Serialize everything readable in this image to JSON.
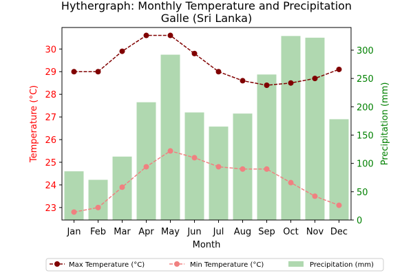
{
  "chart_data": {
    "type": "bar",
    "title_line1": "Hythergraph: Monthly Temperature and Precipitation",
    "title_line2": "Galle (Sri Lanka)",
    "xlabel": "Month",
    "ylabel_left": "Temperature (°C)",
    "ylabel_right": "Precipitation (mm)",
    "categories": [
      "Jan",
      "Feb",
      "Mar",
      "Apr",
      "May",
      "Jun",
      "Jul",
      "Aug",
      "Sep",
      "Oct",
      "Nov",
      "Dec"
    ],
    "left_axis": {
      "ylim": [
        22.45,
        30.95
      ],
      "ticks": [
        23,
        24,
        25,
        26,
        27,
        28,
        29,
        30
      ],
      "color": "#ff0000"
    },
    "right_axis": {
      "ylim": [
        0,
        340
      ],
      "ticks": [
        0,
        50,
        100,
        150,
        200,
        250,
        300
      ],
      "color": "#008000"
    },
    "series": [
      {
        "name": "Max Temperature (°C)",
        "type": "line",
        "axis": "left",
        "color": "#800000",
        "values": [
          29.0,
          29.0,
          29.9,
          30.6,
          30.6,
          29.8,
          29.0,
          28.6,
          28.4,
          28.5,
          28.7,
          29.1
        ]
      },
      {
        "name": "Min Temperature (°C)",
        "type": "line",
        "axis": "left",
        "color": "#f08080",
        "values": [
          22.8,
          23.0,
          23.9,
          24.8,
          25.5,
          25.2,
          24.8,
          24.7,
          24.7,
          24.1,
          23.5,
          23.1
        ]
      },
      {
        "name": "Precipitation (mm)",
        "type": "bar",
        "axis": "right",
        "color": "#b0d8b0",
        "values": [
          86,
          71,
          112,
          208,
          292,
          190,
          165,
          188,
          257,
          325,
          322,
          178
        ]
      }
    ],
    "grid": false,
    "legend_position": "bottom-center"
  }
}
